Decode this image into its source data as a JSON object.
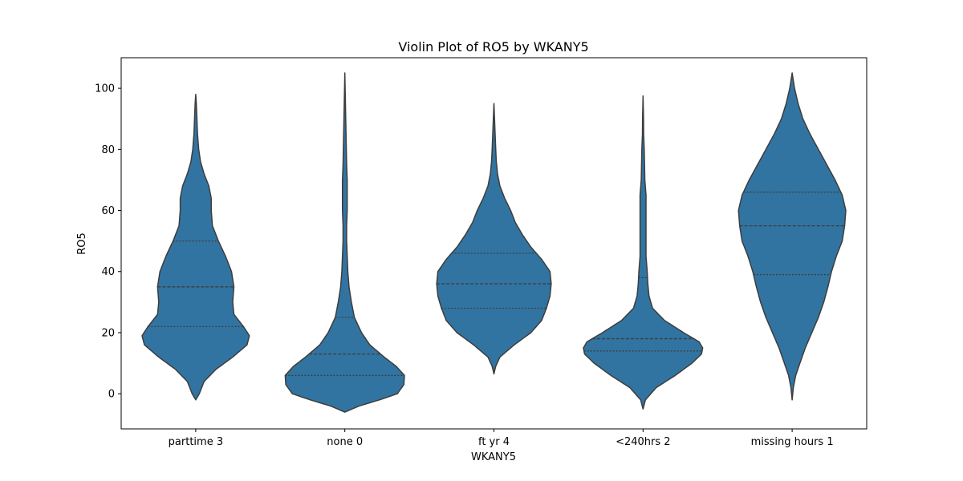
{
  "chart_data": {
    "type": "violin",
    "title": "Violin Plot of RO5 by WKANY5",
    "xlabel": "WKANY5",
    "ylabel": "RO5",
    "ylim": [
      -11.5,
      110
    ],
    "yticks": [
      0,
      20,
      40,
      60,
      80,
      100
    ],
    "grid": false,
    "color": "#3274a1",
    "edge_color": "#3d3d3d",
    "categories": [
      "parttime 3",
      "none 0",
      "ft yr 4",
      "<240hrs 2",
      "missing hours 1"
    ],
    "series": [
      {
        "category": "parttime 3",
        "min": -2,
        "max": 98,
        "quartiles": [
          22,
          35,
          50
        ],
        "profile": [
          [
            -2,
            0.0
          ],
          [
            0,
            0.06
          ],
          [
            4,
            0.14
          ],
          [
            8,
            0.34
          ],
          [
            12,
            0.62
          ],
          [
            16,
            0.86
          ],
          [
            19,
            0.9
          ],
          [
            22,
            0.8
          ],
          [
            26,
            0.64
          ],
          [
            30,
            0.62
          ],
          [
            35,
            0.64
          ],
          [
            40,
            0.6
          ],
          [
            45,
            0.5
          ],
          [
            50,
            0.38
          ],
          [
            55,
            0.28
          ],
          [
            60,
            0.26
          ],
          [
            64,
            0.26
          ],
          [
            68,
            0.22
          ],
          [
            72,
            0.14
          ],
          [
            76,
            0.08
          ],
          [
            80,
            0.05
          ],
          [
            85,
            0.03
          ],
          [
            90,
            0.02
          ],
          [
            95,
            0.01
          ],
          [
            98,
            0.0
          ]
        ]
      },
      {
        "category": "none 0",
        "min": -6,
        "max": 105,
        "quartiles": [
          6,
          13,
          25
        ],
        "profile": [
          [
            -6,
            0.0
          ],
          [
            -4,
            0.24
          ],
          [
            -2,
            0.58
          ],
          [
            0,
            0.88
          ],
          [
            3,
            0.99
          ],
          [
            6,
            1.0
          ],
          [
            9,
            0.86
          ],
          [
            12,
            0.66
          ],
          [
            16,
            0.42
          ],
          [
            20,
            0.28
          ],
          [
            25,
            0.16
          ],
          [
            30,
            0.11
          ],
          [
            35,
            0.07
          ],
          [
            40,
            0.05
          ],
          [
            45,
            0.04
          ],
          [
            50,
            0.03
          ],
          [
            55,
            0.03
          ],
          [
            60,
            0.04
          ],
          [
            65,
            0.04
          ],
          [
            70,
            0.04
          ],
          [
            75,
            0.03
          ],
          [
            80,
            0.025
          ],
          [
            85,
            0.02
          ],
          [
            90,
            0.015
          ],
          [
            95,
            0.01
          ],
          [
            100,
            0.005
          ],
          [
            105,
            0.0
          ]
        ]
      },
      {
        "category": "ft yr 4",
        "min": 6.5,
        "max": 95,
        "quartiles": [
          28,
          36,
          46
        ],
        "profile": [
          [
            6.5,
            0.0
          ],
          [
            9,
            0.03
          ],
          [
            12,
            0.1
          ],
          [
            16,
            0.34
          ],
          [
            20,
            0.62
          ],
          [
            24,
            0.8
          ],
          [
            28,
            0.88
          ],
          [
            32,
            0.94
          ],
          [
            36,
            0.96
          ],
          [
            40,
            0.94
          ],
          [
            44,
            0.8
          ],
          [
            48,
            0.62
          ],
          [
            52,
            0.48
          ],
          [
            56,
            0.36
          ],
          [
            60,
            0.28
          ],
          [
            64,
            0.18
          ],
          [
            68,
            0.1
          ],
          [
            72,
            0.06
          ],
          [
            76,
            0.04
          ],
          [
            80,
            0.03
          ],
          [
            85,
            0.02
          ],
          [
            90,
            0.01
          ],
          [
            95,
            0.0
          ]
        ]
      },
      {
        "category": "<240hrs 2",
        "min": -5,
        "max": 97.5,
        "quartiles": [
          14,
          18,
          38
        ],
        "profile": [
          [
            -5,
            0.0
          ],
          [
            -2,
            0.04
          ],
          [
            2,
            0.22
          ],
          [
            6,
            0.54
          ],
          [
            10,
            0.82
          ],
          [
            13,
            0.98
          ],
          [
            15,
            1.0
          ],
          [
            17,
            0.94
          ],
          [
            20,
            0.68
          ],
          [
            24,
            0.36
          ],
          [
            28,
            0.16
          ],
          [
            32,
            0.1
          ],
          [
            36,
            0.08
          ],
          [
            40,
            0.07
          ],
          [
            45,
            0.05
          ],
          [
            50,
            0.05
          ],
          [
            55,
            0.05
          ],
          [
            60,
            0.05
          ],
          [
            65,
            0.05
          ],
          [
            70,
            0.03
          ],
          [
            75,
            0.025
          ],
          [
            80,
            0.02
          ],
          [
            85,
            0.01
          ],
          [
            90,
            0.008
          ],
          [
            97.5,
            0.0
          ]
        ]
      },
      {
        "category": "missing hours 1",
        "min": -2,
        "max": 105,
        "quartiles": [
          39,
          55,
          66
        ],
        "profile": [
          [
            -2,
            0.0
          ],
          [
            2,
            0.02
          ],
          [
            6,
            0.06
          ],
          [
            10,
            0.13
          ],
          [
            15,
            0.22
          ],
          [
            20,
            0.33
          ],
          [
            25,
            0.44
          ],
          [
            30,
            0.53
          ],
          [
            35,
            0.6
          ],
          [
            40,
            0.66
          ],
          [
            45,
            0.74
          ],
          [
            50,
            0.84
          ],
          [
            55,
            0.88
          ],
          [
            60,
            0.9
          ],
          [
            65,
            0.84
          ],
          [
            70,
            0.72
          ],
          [
            75,
            0.58
          ],
          [
            80,
            0.44
          ],
          [
            85,
            0.3
          ],
          [
            90,
            0.18
          ],
          [
            95,
            0.1
          ],
          [
            100,
            0.04
          ],
          [
            105,
            0.0
          ]
        ]
      }
    ]
  }
}
